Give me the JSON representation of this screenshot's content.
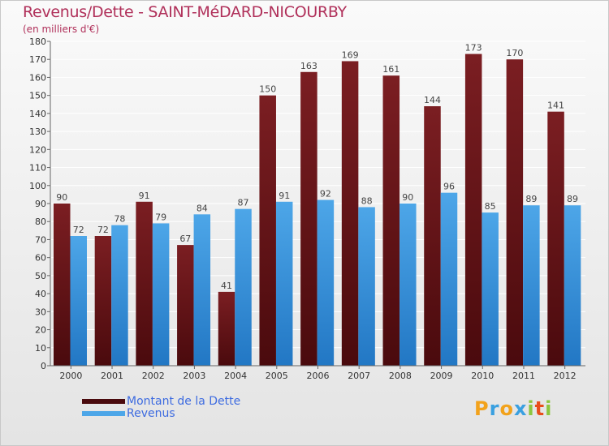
{
  "title": "Revenus/Dette - SAINT-MéDARD-NICOURBY",
  "subtitle": "(en milliers d'€)",
  "colors": {
    "debt": "#7b1e22",
    "debt_dark": "#4a0a0d",
    "revenue": "#4da6e8",
    "revenue_dark": "#2277c4",
    "title": "#b0305a",
    "legend_text": "#3d6be0"
  },
  "legend": {
    "debt_label": "Montant de la Dette",
    "revenue_label": "Revenus"
  },
  "logo": {
    "letters": [
      "P",
      "r",
      "o",
      "x",
      "i",
      "t",
      "i"
    ],
    "colors": [
      "#f2a21b",
      "#3aa0e0",
      "#f2a21b",
      "#3aa0e0",
      "#8dc63f",
      "#e94e1b",
      "#8dc63f"
    ]
  },
  "chart_data": {
    "type": "bar",
    "categories": [
      "2000",
      "2001",
      "2002",
      "2003",
      "2004",
      "2005",
      "2006",
      "2007",
      "2008",
      "2009",
      "2010",
      "2011",
      "2012"
    ],
    "series": [
      {
        "name": "Montant de la Dette",
        "values": [
          90,
          72,
          91,
          67,
          41,
          150,
          163,
          169,
          161,
          144,
          173,
          170,
          141
        ]
      },
      {
        "name": "Revenus",
        "values": [
          72,
          78,
          79,
          84,
          87,
          91,
          92,
          88,
          90,
          96,
          85,
          89,
          89
        ]
      }
    ],
    "ylim": [
      0,
      180
    ],
    "yticks": [
      0,
      10,
      20,
      30,
      40,
      50,
      60,
      70,
      80,
      90,
      100,
      110,
      120,
      130,
      140,
      150,
      160,
      170,
      180
    ],
    "grid": true,
    "legend_position": "bottom-left"
  }
}
